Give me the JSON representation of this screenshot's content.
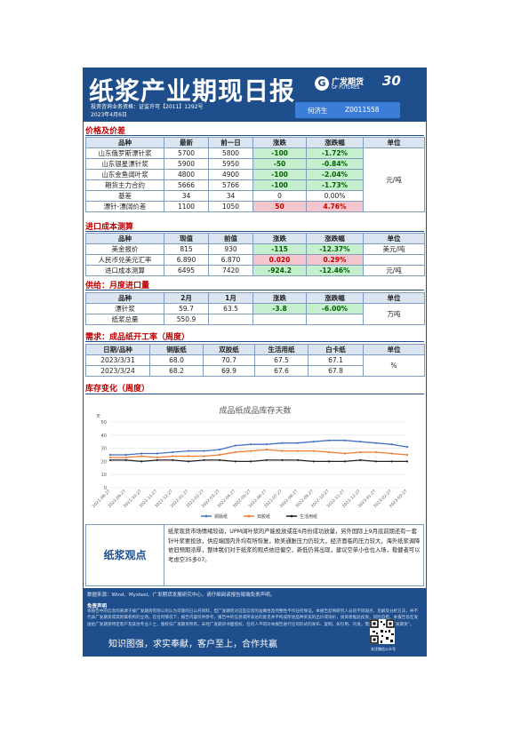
{
  "header": {
    "title": "纸浆产业期现日报",
    "license": "投资咨询业务资格：证监许可【2011】1292号",
    "date": "2023年4月6日",
    "logo_cn": "广发期货",
    "logo_en": "GF FUTURES",
    "anniversary": "30",
    "analyst_name": "何济生",
    "analyst_id": "Z0011558"
  },
  "price": {
    "section_title": "价格及价差",
    "headers": [
      "品种",
      "最新",
      "前一日",
      "涨跌",
      "涨跌幅",
      "单位"
    ],
    "unit": "元/吨",
    "rows": [
      {
        "name": "山东俄罗斯漂针浆",
        "latest": "5700",
        "prev": "5800",
        "chg": "-100",
        "pct": "-1.72%",
        "dir": "dn"
      },
      {
        "name": "山东银星漂针浆",
        "latest": "5900",
        "prev": "5950",
        "chg": "-50",
        "pct": "-0.84%",
        "dir": "dn"
      },
      {
        "name": "山东金鱼阔叶浆",
        "latest": "4800",
        "prev": "4900",
        "chg": "-100",
        "pct": "-2.04%",
        "dir": "dn"
      },
      {
        "name": "期货主力合约",
        "latest": "5666",
        "prev": "5766",
        "chg": "-100",
        "pct": "-1.73%",
        "dir": "dn"
      },
      {
        "name": "基差",
        "latest": "34",
        "prev": "34",
        "chg": "0",
        "pct": "0.00%",
        "dir": "flat"
      },
      {
        "name": "漂针-漂阔价差",
        "latest": "1100",
        "prev": "1050",
        "chg": "50",
        "pct": "4.76%",
        "dir": "up"
      }
    ]
  },
  "cost": {
    "section_title": "进口成本测算",
    "headers": [
      "品种",
      "现值",
      "前值",
      "涨跌",
      "涨跌幅",
      "单位"
    ],
    "rows": [
      {
        "name": "美金报价",
        "cur": "815",
        "prev": "930",
        "chg": "-115",
        "pct": "-12.37%",
        "dir": "dn",
        "unit": "美元/吨"
      },
      {
        "name": "人民币兑美元汇率",
        "cur": "6.890",
        "prev": "6.870",
        "chg": "0.020",
        "pct": "0.29%",
        "dir": "up",
        "unit": ""
      },
      {
        "name": "进口成本测算",
        "cur": "6495",
        "prev": "7420",
        "chg": "-924.2",
        "pct": "-12.46%",
        "dir": "dn",
        "unit": "元/吨"
      }
    ]
  },
  "supply": {
    "section_title": "供给：月度进口量",
    "headers": [
      "品种",
      "2月",
      "1月",
      "涨跌",
      "涨跌幅",
      "单位"
    ],
    "unit": "万吨",
    "rows": [
      {
        "name": "漂针浆",
        "feb": "59.7",
        "jan": "63.5",
        "chg": "-3.8",
        "pct": "-6.00%",
        "dir": "dn"
      },
      {
        "name": "纸浆总量",
        "feb": "550.9",
        "jan": "",
        "chg": "",
        "pct": "",
        "dir": "flat"
      }
    ]
  },
  "demand": {
    "section_title": "需求：成品纸开工率（周度）",
    "headers": [
      "日期/品种",
      "铜版纸",
      "双胶纸",
      "生活用纸",
      "白卡纸",
      "单位"
    ],
    "unit": "%",
    "rows": [
      {
        "date": "2023/3/31",
        "coated": "68.0",
        "offset": "70.7",
        "tissue": "67.5",
        "ivory": "67.1"
      },
      {
        "date": "2023/3/24",
        "coated": "68.2",
        "offset": "69.9",
        "tissue": "67.6",
        "ivory": "67.8"
      }
    ]
  },
  "inventory": {
    "section_title": "库存变化（周度）"
  },
  "chart_data": {
    "type": "line",
    "title": "成品纸成品库存天数",
    "ylabel": "天",
    "ylim": [
      0,
      50
    ],
    "yticks": [
      0,
      10,
      20,
      30,
      40,
      50
    ],
    "x": [
      "2021-08-27",
      "2021-09-27",
      "2021-10-27",
      "2021-11-27",
      "2021-12-27",
      "2022-01-27",
      "2022-02-27",
      "2022-03-27",
      "2022-04-27",
      "2022-05-27",
      "2022-06-27",
      "2022-07-27",
      "2022-08-27",
      "2022-09-27",
      "2022-10-27",
      "2022-11-27",
      "2022-12-27",
      "2023-01-27",
      "2023-02-27",
      "2023-03-27"
    ],
    "legend_position": "bottom",
    "series": [
      {
        "name": "铜版纸",
        "color": "#4472c4",
        "values": [
          25,
          25,
          26,
          26,
          27,
          28,
          28,
          29,
          32,
          33,
          33,
          34,
          34,
          35,
          36,
          36,
          35,
          34,
          33,
          31
        ]
      },
      {
        "name": "双胶纸",
        "color": "#ed7d31",
        "values": [
          23,
          23,
          24,
          23,
          24,
          24,
          24,
          25,
          27,
          28,
          29,
          28,
          28,
          28,
          27,
          26,
          27,
          27,
          26,
          25
        ]
      },
      {
        "name": "生活用纸",
        "color": "#222222",
        "values": [
          21,
          21,
          20,
          21,
          21,
          20,
          21,
          21,
          20,
          20,
          21,
          21,
          21,
          20,
          20,
          20,
          21,
          20,
          20,
          20
        ]
      }
    ]
  },
  "view": {
    "label": "纸浆观点",
    "text": "纸浆现货市场情绪较弱，UPM阔叶浆的产能投放或在6月份成功放量，另外国际上9月底前期还有一套针叶浆要投放，供应端国内外均有所恢复，欧美通胀压力仍较大，经济面临的压力较大，海外纸浆调降依旧预期浓厚，整体我们对于纸浆的观点依旧偏空，新低仍将出现，建议空单小仓位入场，稳健者可以考虑空35多07。"
  },
  "footer": {
    "source": "数据来源：Wind、Mysteel、广发期货发展研究中心，请仔细阅读报告尾端免责声明。",
    "disclaimer_title": "免责声明",
    "disclaimer": "本报告中的信息均来源于被广发期货有限公司认为可靠的已公开资料，但广发期货对这些信息的准确性及完整性不作任何保证。本报告反映研究人员的不同观点、见解及分析方法，并不代表广发期货或其附属机构的立场。在任何情况下，报告内容仅供参考，报告中的信息或所表达的意见并不构成所述品种买卖的出价或询价，投资者据此投资，风险自担。本报告旨在发送给广发期货特定客户及其他专业人士，版权归广发期货所有，未经广发期货书面授权，任何人不得对本报告进行任何形式的发布、复制。如引用、刊发，需注明出处为“广发期货”。",
    "slogan": "知识图强，求实奉献，客户至上，合作共赢",
    "qr_caption": "关注微信公众号"
  }
}
